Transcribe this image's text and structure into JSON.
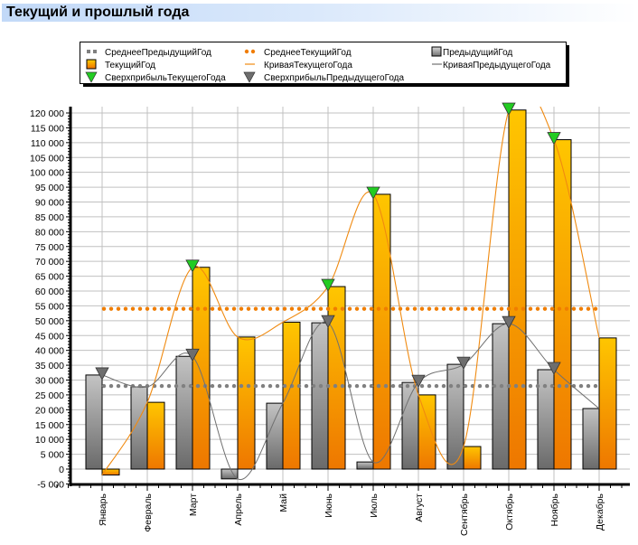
{
  "header": {
    "title": "Текущий и прошлый года"
  },
  "colors": {
    "previous_bar_top": "#c4c4c4",
    "previous_bar_bottom": "#6a6a6a",
    "current_bar_top": "#ffc600",
    "current_bar_bottom": "#ee7700",
    "average_previous": "#808080",
    "average_current": "#f07d00",
    "curve_current": "#f08a10",
    "curve_previous": "#707070",
    "marker_current": "#22cc22",
    "marker_previous": "#6e6e6e",
    "grid": "#c0c0c0",
    "title_bar": "#c2d9f8"
  },
  "chart_data": {
    "type": "bar",
    "title": "Текущий и прошлый года",
    "xlabel": "",
    "ylabel": "",
    "ylim": [
      -5000,
      120000
    ],
    "ytick_step": 5000,
    "yticks": [
      "-5 000",
      "0",
      "5 000",
      "10 000",
      "15 000",
      "20 000",
      "25 000",
      "30 000",
      "35 000",
      "40 000",
      "45 000",
      "50 000",
      "55 000",
      "60 000",
      "65 000",
      "70 000",
      "75 000",
      "80 000",
      "85 000",
      "90 000",
      "95 000",
      "100 000",
      "105 000",
      "110 000",
      "115 000",
      "120 000"
    ],
    "grid": true,
    "legend_position": "top",
    "categories": [
      "Январь",
      "Февраль",
      "Март",
      "Апрель",
      "Май",
      "Июнь",
      "Июль",
      "Август",
      "Сентябрь",
      "Октябрь",
      "Ноябрь",
      "Декабрь"
    ],
    "series": [
      {
        "name": "ПредыдущийГод",
        "kind": "bar",
        "values": [
          31700,
          27700,
          38000,
          -3300,
          22200,
          49300,
          2400,
          29200,
          35300,
          49000,
          33500,
          20400
        ]
      },
      {
        "name": "ТекущийГод",
        "kind": "bar",
        "values": [
          -2000,
          22500,
          68000,
          44500,
          49500,
          61500,
          92600,
          25000,
          7600,
          121000,
          111000,
          44200
        ]
      },
      {
        "name": "СреднееПредыдущийГод",
        "kind": "dotted-line",
        "value": 28000
      },
      {
        "name": "СреднееТекущийГод",
        "kind": "dotted-line",
        "value": 54000
      },
      {
        "name": "КриваяТекущегоГода",
        "kind": "spline",
        "source": "ТекущийГод"
      },
      {
        "name": "КриваяПредыдущегоГода",
        "kind": "spline",
        "source": "ПредыдущийГод"
      },
      {
        "name": "СверхприбыльТекущегоГода",
        "kind": "markers",
        "marker": "triangle-down",
        "categories": [
          "Март",
          "Июнь",
          "Июль",
          "Октябрь",
          "Ноябрь"
        ]
      },
      {
        "name": "СверхприбыльПредыдущегоГода",
        "kind": "markers",
        "marker": "triangle-down",
        "categories": [
          "Январь",
          "Март",
          "Июнь",
          "Август",
          "Сентябрь",
          "Октябрь",
          "Ноябрь"
        ]
      }
    ]
  },
  "legend": {
    "items": [
      {
        "label": "СреднееПредыдущийГод",
        "icon": "dotted-gray"
      },
      {
        "label": "СреднееТекущийГод",
        "icon": "dotted-orange"
      },
      {
        "label": "ПредыдущийГод",
        "icon": "square-gray"
      },
      {
        "label": "ТекущийГод",
        "icon": "square-orange"
      },
      {
        "label": "КриваяТекущегоГода",
        "icon": "line-orange"
      },
      {
        "label": "КриваяПредыдущегоГода",
        "icon": "line-gray"
      },
      {
        "label": "СверхприбыльТекущегоГода",
        "icon": "triangle-green"
      },
      {
        "label": "СверхприбыльПредыдущегоГода",
        "icon": "triangle-gray"
      }
    ]
  }
}
